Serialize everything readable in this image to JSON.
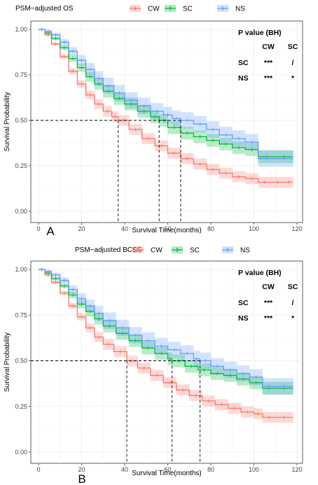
{
  "chart_data": [
    {
      "type": "line",
      "subtype": "kaplan-meier",
      "panel_label": "A",
      "legend_title": "PSM−adjusted OS",
      "xlabel": "Survival Time(months)",
      "ylabel": "Survival Probability",
      "xlim": [
        0,
        120
      ],
      "ylim": [
        0,
        1
      ],
      "xticks": [
        "0",
        "20",
        "40",
        "60",
        "80",
        "100",
        "120"
      ],
      "yticks": [
        "0.00",
        "0.25",
        "0.50",
        "0.75",
        "1.00"
      ],
      "grid": true,
      "legend_position": "top",
      "reference_line": {
        "y": 0.5,
        "x_cross": [
          37,
          56,
          66
        ]
      },
      "series": [
        {
          "name": "CW",
          "color": "#F8766D",
          "x": [
            0,
            3,
            6,
            10,
            14,
            18,
            22,
            26,
            30,
            34,
            37,
            42,
            48,
            54,
            60,
            66,
            72,
            78,
            84,
            90,
            96,
            102,
            108,
            114,
            118
          ],
          "y": [
            1.0,
            0.97,
            0.92,
            0.85,
            0.77,
            0.7,
            0.64,
            0.59,
            0.55,
            0.52,
            0.5,
            0.45,
            0.4,
            0.36,
            0.32,
            0.29,
            0.26,
            0.23,
            0.21,
            0.19,
            0.18,
            0.16,
            0.16,
            0.16,
            0.16
          ],
          "band": 0.03
        },
        {
          "name": "SC",
          "color": "#00BA38",
          "x": [
            0,
            3,
            6,
            10,
            14,
            18,
            22,
            26,
            30,
            35,
            40,
            46,
            52,
            56,
            60,
            66,
            72,
            78,
            84,
            90,
            96,
            102,
            110,
            118
          ],
          "y": [
            1.0,
            0.98,
            0.95,
            0.9,
            0.84,
            0.79,
            0.74,
            0.7,
            0.66,
            0.62,
            0.59,
            0.55,
            0.52,
            0.5,
            0.46,
            0.43,
            0.41,
            0.39,
            0.37,
            0.35,
            0.34,
            0.3,
            0.3,
            0.3
          ],
          "band": 0.035
        },
        {
          "name": "NS",
          "color": "#619CFF",
          "x": [
            0,
            3,
            6,
            10,
            14,
            18,
            22,
            26,
            30,
            35,
            40,
            46,
            52,
            58,
            62,
            66,
            72,
            78,
            84,
            90,
            96,
            102,
            110,
            118
          ],
          "y": [
            1.0,
            0.99,
            0.97,
            0.93,
            0.88,
            0.83,
            0.78,
            0.73,
            0.69,
            0.65,
            0.61,
            0.58,
            0.55,
            0.53,
            0.51,
            0.5,
            0.48,
            0.45,
            0.42,
            0.4,
            0.38,
            0.29,
            0.29,
            0.29
          ],
          "band": 0.045
        }
      ],
      "pvalue_table": {
        "title": "P value (BH)",
        "columns": [
          "CW",
          "SC"
        ],
        "rows": [
          {
            "label": "SC",
            "values": [
              "***",
              "/"
            ]
          },
          {
            "label": "NS",
            "values": [
              "***",
              "*"
            ]
          }
        ]
      }
    },
    {
      "type": "line",
      "subtype": "kaplan-meier",
      "panel_label": "B",
      "legend_title": "PSM−adjusted BCSS",
      "xlabel": "Survival Time(months)",
      "ylabel": "Survival Probability",
      "xlim": [
        0,
        120
      ],
      "ylim": [
        0,
        1
      ],
      "xticks": [
        "0",
        "20",
        "40",
        "60",
        "80",
        "100",
        "120"
      ],
      "yticks": [
        "0.00",
        "0.25",
        "0.50",
        "0.75",
        "1.00"
      ],
      "grid": true,
      "legend_position": "top",
      "reference_line": {
        "y": 0.5,
        "x_cross": [
          41,
          62,
          75
        ]
      },
      "series": [
        {
          "name": "CW",
          "color": "#F8766D",
          "x": [
            0,
            3,
            6,
            10,
            14,
            18,
            22,
            26,
            30,
            35,
            41,
            46,
            52,
            58,
            64,
            70,
            76,
            82,
            88,
            94,
            100,
            104,
            110,
            118
          ],
          "y": [
            1.0,
            0.97,
            0.93,
            0.87,
            0.8,
            0.74,
            0.68,
            0.63,
            0.59,
            0.55,
            0.5,
            0.46,
            0.42,
            0.38,
            0.34,
            0.31,
            0.28,
            0.26,
            0.24,
            0.22,
            0.21,
            0.19,
            0.19,
            0.19
          ],
          "band": 0.03
        },
        {
          "name": "SC",
          "color": "#00BA38",
          "x": [
            0,
            3,
            6,
            10,
            14,
            18,
            22,
            26,
            30,
            36,
            42,
            48,
            54,
            60,
            62,
            68,
            74,
            80,
            86,
            92,
            98,
            104,
            110,
            118
          ],
          "y": [
            1.0,
            0.98,
            0.95,
            0.91,
            0.86,
            0.81,
            0.77,
            0.73,
            0.69,
            0.65,
            0.61,
            0.57,
            0.54,
            0.51,
            0.5,
            0.47,
            0.45,
            0.43,
            0.42,
            0.4,
            0.38,
            0.35,
            0.35,
            0.35
          ],
          "band": 0.035
        },
        {
          "name": "NS",
          "color": "#619CFF",
          "x": [
            0,
            3,
            6,
            10,
            14,
            18,
            22,
            26,
            30,
            36,
            42,
            48,
            54,
            60,
            66,
            72,
            75,
            80,
            86,
            92,
            98,
            104,
            110,
            118
          ],
          "y": [
            1.0,
            0.99,
            0.97,
            0.94,
            0.89,
            0.84,
            0.8,
            0.76,
            0.72,
            0.68,
            0.64,
            0.61,
            0.58,
            0.56,
            0.54,
            0.51,
            0.5,
            0.47,
            0.45,
            0.43,
            0.41,
            0.36,
            0.36,
            0.36
          ],
          "band": 0.045
        }
      ],
      "pvalue_table": {
        "title": "P value (BH)",
        "columns": [
          "CW",
          "SC"
        ],
        "rows": [
          {
            "label": "SC",
            "values": [
              "***",
              "/"
            ]
          },
          {
            "label": "NS",
            "values": [
              "***",
              "*"
            ]
          }
        ]
      }
    }
  ]
}
